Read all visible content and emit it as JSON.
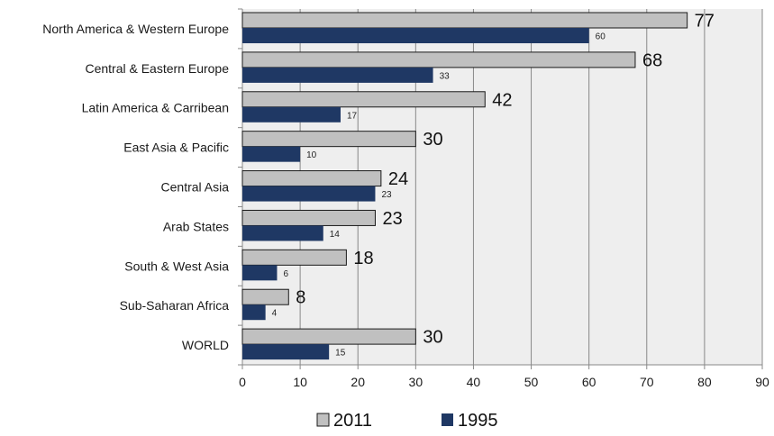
{
  "chart_data": {
    "type": "bar",
    "orientation": "horizontal",
    "title": "",
    "xlabel": "",
    "ylabel": "",
    "xlim": [
      0,
      90
    ],
    "xticks": [
      0,
      10,
      20,
      30,
      40,
      50,
      60,
      70,
      80,
      90
    ],
    "grid": true,
    "legend_position": "bottom",
    "categories": [
      "North America & Western Europe",
      "Central & Eastern Europe",
      "Latin America & Carribean",
      "East Asia & Pacific",
      "Central Asia",
      "Arab States",
      "South & West Asia",
      "Sub-Saharan Africa",
      "WORLD"
    ],
    "series": [
      {
        "name": "2011",
        "color": "#c0c0c0",
        "values": [
          77,
          68,
          42,
          30,
          24,
          23,
          18,
          8,
          30
        ]
      },
      {
        "name": "1995",
        "color": "#1f3864",
        "values": [
          60,
          33,
          17,
          10,
          23,
          14,
          6,
          4,
          15
        ]
      }
    ]
  }
}
